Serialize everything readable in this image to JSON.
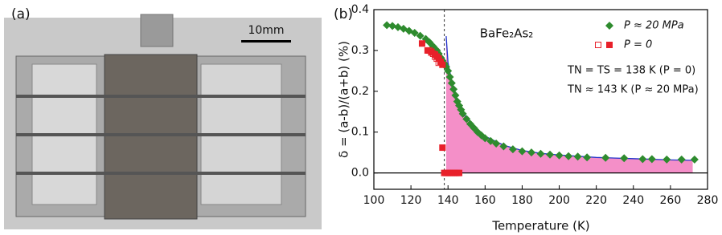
{
  "panel_a": {
    "label": "(a)",
    "scale_bar": "10mm"
  },
  "chart_data": {
    "type": "scatter",
    "panel_label": "(b)",
    "title": "BaFe₂As₂",
    "x_label": "Temperature (K)",
    "y_label": "δ = (a-b)/(a+b) (%)",
    "annotations": [
      "TN = TS = 138 K (P = 0)",
      "TN ≈ 143 K (P ≈ 20 MPa)"
    ],
    "xlim": [
      100,
      280
    ],
    "xticks": [
      100,
      120,
      140,
      160,
      180,
      200,
      220,
      240,
      260,
      280
    ],
    "ylim": [
      -0.04,
      0.4
    ],
    "yticks": [
      {
        "value": 0,
        "label": "0.0"
      },
      0.1,
      0.2,
      0.3,
      0.4
    ],
    "vline": 138,
    "legend": "upper right",
    "series": [
      {
        "name": "P ≈ 20 MPa",
        "color": "#2e8b2e",
        "marker": "diamond",
        "x": [
          107,
          110,
          113,
          116,
          119,
          122,
          125,
          128,
          130,
          132,
          134,
          135,
          136,
          137,
          138,
          139,
          140,
          141,
          142,
          143,
          144,
          145,
          146,
          147,
          148,
          150,
          152,
          154,
          156,
          158,
          160,
          163,
          166,
          170,
          175,
          180,
          185,
          190,
          195,
          200,
          205,
          210,
          215,
          225,
          235,
          245,
          250,
          258,
          266,
          273
        ],
        "values": [
          0.362,
          0.36,
          0.357,
          0.353,
          0.348,
          0.343,
          0.336,
          0.328,
          0.32,
          0.31,
          0.3,
          0.292,
          0.283,
          0.275,
          0.268,
          0.26,
          0.25,
          0.235,
          0.22,
          0.205,
          0.19,
          0.175,
          0.165,
          0.155,
          0.145,
          0.132,
          0.12,
          0.11,
          0.1,
          0.092,
          0.085,
          0.078,
          0.072,
          0.065,
          0.058,
          0.053,
          0.05,
          0.047,
          0.045,
          0.043,
          0.041,
          0.04,
          0.038,
          0.037,
          0.036,
          0.034,
          0.034,
          0.033,
          0.033,
          0.033
        ]
      },
      {
        "name": "P = 0",
        "color": "#e8202a",
        "marker": "square",
        "x": [
          126,
          129,
          131,
          133,
          134,
          135,
          136,
          137,
          137,
          138,
          139,
          140,
          141,
          142,
          143,
          144,
          145,
          146
        ],
        "values": [
          0.317,
          0.3,
          0.297,
          0.29,
          0.285,
          0.28,
          0.272,
          0.265,
          0.062,
          0,
          0,
          0,
          0,
          0,
          0,
          0,
          0,
          0
        ],
        "hollow_points": {
          "x": [
            130,
            131,
            132,
            133,
            134,
            135
          ],
          "values": [
            0.3,
            0.295,
            0.292,
            0.285,
            0.28,
            0.27
          ]
        }
      }
    ],
    "fit": {
      "color": "#2233cc",
      "fill": "#f48fc8",
      "x": [
        139,
        140,
        142,
        144,
        146,
        148,
        150,
        155,
        160,
        170,
        180,
        190,
        200,
        220,
        240,
        260,
        272
      ],
      "values": [
        0.335,
        0.27,
        0.225,
        0.19,
        0.165,
        0.148,
        0.135,
        0.11,
        0.09,
        0.068,
        0.055,
        0.048,
        0.044,
        0.038,
        0.035,
        0.032,
        0.031
      ]
    }
  }
}
